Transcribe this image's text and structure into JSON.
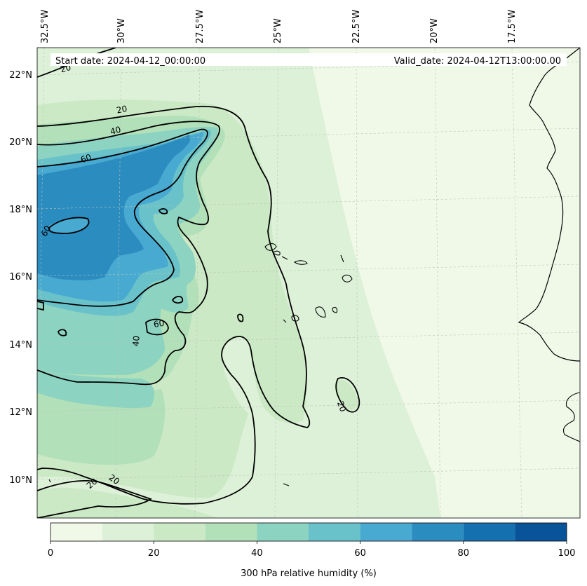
{
  "header": {
    "start_date": "Start date: 2024-04-12_00:00:00",
    "valid_date": "Valid_date: 2024-04-12T13:00:00.00"
  },
  "lon_labels": [
    "32.5°W",
    "30°W",
    "27.5°W",
    "25°W",
    "22.5°W",
    "20°W",
    "17.5°W"
  ],
  "lat_labels": [
    "22°N",
    "20°N",
    "18°N",
    "16°N",
    "14°N",
    "12°N",
    "10°N"
  ],
  "contour_labels": [
    "20",
    "20",
    "40",
    "60",
    "60",
    "60",
    "40",
    "20",
    "20",
    "20"
  ],
  "colorbar": {
    "label": "300 hPa relative humidity (%)",
    "tick_labels": [
      "0",
      "20",
      "40",
      "60",
      "80",
      "100"
    ],
    "levels": [
      0,
      10,
      20,
      30,
      40,
      50,
      60,
      70,
      80,
      90,
      100
    ],
    "colors": [
      "#f0f9e8",
      "#ddf1d8",
      "#cbe9c5",
      "#b2e0b8",
      "#8dd3c1",
      "#69c2ca",
      "#48aad1",
      "#2b8cc0",
      "#1470ae",
      "#08539a"
    ]
  },
  "palette": {
    "rh_0_10": "#f0f9e8",
    "rh_10_20": "#ddf1d8",
    "rh_20_30": "#cbe9c5",
    "rh_30_40": "#b2e0b8",
    "rh_40_50": "#8dd3c1",
    "rh_50_60": "#69c2ca",
    "rh_60_70": "#48aad1",
    "rh_70_80": "#2b8cc0",
    "contour": "#000000",
    "coastline": "#000000"
  }
}
